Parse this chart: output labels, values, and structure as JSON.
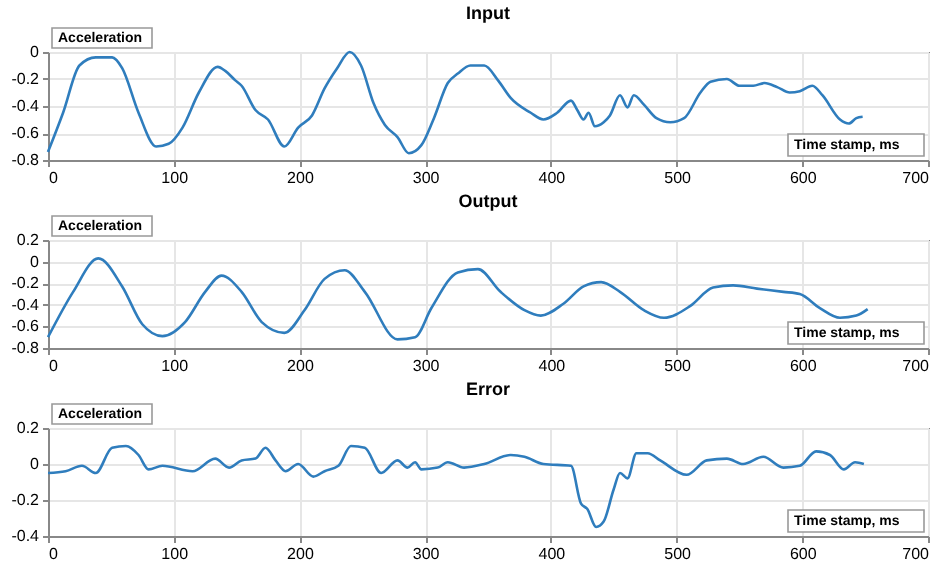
{
  "chart_data": [
    {
      "type": "line",
      "title": "Input",
      "xlabel": "Time stamp, ms",
      "ylabel": "Acceleration",
      "color": "#2f7dbd",
      "grid": true,
      "xlim": [
        0,
        700
      ],
      "xticks": [
        0,
        100,
        200,
        300,
        400,
        500,
        600,
        700
      ],
      "ylim": [
        -0.8,
        0
      ],
      "yticks": [
        -0.8,
        -0.6,
        -0.4,
        -0.2,
        0
      ],
      "x": [
        0,
        12,
        25,
        38,
        51,
        59,
        72,
        86,
        96,
        107,
        120,
        135,
        141,
        149,
        154,
        165,
        175,
        188,
        199,
        210,
        220,
        230,
        240,
        249,
        259,
        268,
        278,
        287,
        297,
        307,
        318,
        326,
        336,
        347,
        358,
        368,
        384,
        394,
        405,
        416,
        421,
        426,
        430,
        435,
        442,
        447,
        455,
        461,
        466,
        474,
        484,
        495,
        506,
        519,
        527,
        540,
        550,
        561,
        570,
        580,
        590,
        598,
        608,
        616,
        630,
        637,
        643,
        648
      ],
      "values": [
        -0.74,
        -0.45,
        -0.1,
        -0.04,
        -0.04,
        -0.12,
        -0.45,
        -0.7,
        -0.68,
        -0.56,
        -0.3,
        -0.11,
        -0.14,
        -0.21,
        -0.25,
        -0.43,
        -0.5,
        -0.7,
        -0.56,
        -0.47,
        -0.27,
        -0.12,
        0,
        -0.1,
        -0.38,
        -0.54,
        -0.63,
        -0.75,
        -0.69,
        -0.49,
        -0.23,
        -0.16,
        -0.1,
        -0.1,
        -0.21,
        -0.34,
        -0.45,
        -0.5,
        -0.45,
        -0.36,
        -0.43,
        -0.5,
        -0.45,
        -0.55,
        -0.52,
        -0.47,
        -0.32,
        -0.41,
        -0.32,
        -0.39,
        -0.49,
        -0.52,
        -0.49,
        -0.3,
        -0.22,
        -0.2,
        -0.25,
        -0.25,
        -0.23,
        -0.26,
        -0.3,
        -0.29,
        -0.25,
        -0.32,
        -0.5,
        -0.53,
        -0.49,
        -0.48
      ]
    },
    {
      "type": "line",
      "title": "Output",
      "xlabel": "Time stamp, ms",
      "ylabel": "Acceleration",
      "color": "#2f7dbd",
      "grid": true,
      "xlim": [
        0,
        700
      ],
      "xticks": [
        0,
        100,
        200,
        300,
        400,
        500,
        600,
        700
      ],
      "ylim": [
        -0.8,
        0.2
      ],
      "yticks": [
        -0.8,
        -0.6,
        -0.4,
        -0.2,
        0,
        0.2
      ],
      "x": [
        0,
        20,
        40,
        59,
        75,
        91,
        109,
        125,
        138,
        154,
        170,
        188,
        204,
        220,
        236,
        252,
        278,
        292,
        305,
        326,
        342,
        360,
        379,
        392,
        410,
        426,
        440,
        455,
        474,
        490,
        511,
        529,
        545,
        564,
        585,
        598,
        614,
        630,
        643,
        652
      ],
      "values": [
        -0.7,
        -0.28,
        0.03,
        -0.23,
        -0.58,
        -0.69,
        -0.56,
        -0.28,
        -0.13,
        -0.28,
        -0.56,
        -0.66,
        -0.45,
        -0.16,
        -0.08,
        -0.28,
        -0.72,
        -0.7,
        -0.43,
        -0.1,
        -0.07,
        -0.28,
        -0.45,
        -0.5,
        -0.39,
        -0.23,
        -0.19,
        -0.28,
        -0.45,
        -0.52,
        -0.41,
        -0.24,
        -0.22,
        -0.25,
        -0.28,
        -0.3,
        -0.43,
        -0.52,
        -0.5,
        -0.44
      ]
    },
    {
      "type": "line",
      "title": "Error",
      "xlabel": "Time stamp, ms",
      "ylabel": "Acceleration",
      "color": "#2f7dbd",
      "grid": true,
      "xlim": [
        0,
        700
      ],
      "xticks": [
        0,
        100,
        200,
        300,
        400,
        500,
        600,
        700
      ],
      "ylim": [
        -0.4,
        0.2
      ],
      "yticks": [
        -0.4,
        -0.2,
        0,
        0.2
      ],
      "x": [
        0,
        14,
        27,
        38,
        51,
        62,
        72,
        80,
        91,
        115,
        133,
        144,
        154,
        165,
        173,
        181,
        189,
        199,
        211,
        220,
        231,
        241,
        252,
        265,
        278,
        286,
        292,
        297,
        310,
        318,
        331,
        347,
        368,
        379,
        394,
        416,
        424,
        429,
        436,
        442,
        450,
        455,
        461,
        468,
        477,
        487,
        508,
        524,
        540,
        553,
        569,
        585,
        598,
        611,
        622,
        633,
        642,
        649
      ],
      "values": [
        -0.05,
        -0.04,
        -0.01,
        -0.05,
        0.09,
        0.1,
        0.05,
        -0.03,
        -0.01,
        -0.04,
        0.03,
        -0.02,
        0.02,
        0.03,
        0.09,
        0.02,
        -0.04,
        0,
        -0.07,
        -0.04,
        -0.01,
        0.1,
        0.09,
        -0.05,
        0.02,
        -0.02,
        0.01,
        -0.03,
        -0.02,
        0.01,
        -0.02,
        0,
        0.05,
        0.04,
        0,
        -0.01,
        -0.22,
        -0.25,
        -0.35,
        -0.32,
        -0.14,
        -0.05,
        -0.08,
        0.06,
        0.06,
        0.02,
        -0.06,
        0.02,
        0.03,
        0,
        0.04,
        -0.02,
        -0.01,
        0.07,
        0.05,
        -0.03,
        0.01,
        0
      ]
    }
  ]
}
